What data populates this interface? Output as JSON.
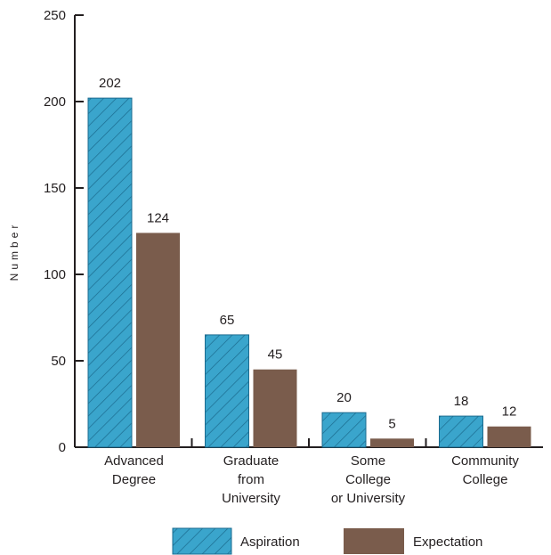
{
  "chart_data": {
    "type": "bar",
    "title": "",
    "xlabel": "",
    "ylabel": "Number",
    "ylim": [
      0,
      250
    ],
    "yticks": [
      0,
      50,
      100,
      150,
      200,
      250
    ],
    "grid": false,
    "legend_position": "bottom",
    "categories": [
      [
        "Advanced",
        "Degree"
      ],
      [
        "Graduate",
        "from",
        "University"
      ],
      [
        "Some",
        "College",
        "or University"
      ],
      [
        "Community",
        "College"
      ]
    ],
    "series": [
      {
        "name": "Aspiration",
        "values": [
          202,
          65,
          20,
          18
        ],
        "color": "#3aa5cc",
        "pattern": "diagonal-hatch"
      },
      {
        "name": "Expectation",
        "values": [
          124,
          45,
          5,
          12
        ],
        "color": "#7a5c4c",
        "pattern": "solid"
      }
    ]
  },
  "colors": {
    "axis": "#231f20",
    "hatch_line": "#1b6b8f",
    "aspiration": "#3aa5cc",
    "expectation": "#7a5c4c"
  }
}
